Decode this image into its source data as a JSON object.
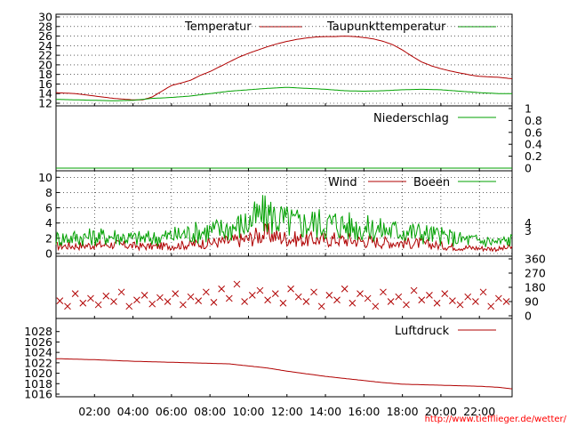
{
  "credit": "http://www.tiefflieger.de/wetter/",
  "time_axis": {
    "labels": [
      "02:00",
      "04:00",
      "06:00",
      "08:00",
      "10:00",
      "12:00",
      "14:00",
      "16:00",
      "18:00",
      "20:00",
      "22:00"
    ],
    "hours": [
      2,
      4,
      6,
      8,
      10,
      12,
      14,
      16,
      18,
      20,
      22
    ],
    "range_hours": [
      0,
      23.7
    ]
  },
  "chart_data": [
    {
      "type": "line",
      "ylim": [
        12,
        30
      ],
      "yticks": [
        12,
        14,
        16,
        18,
        20,
        22,
        24,
        26,
        28,
        30
      ],
      "legend_placement": "top",
      "series": [
        {
          "name": "Temperatur",
          "color": "#b00000",
          "x": [
            0,
            1,
            2,
            3,
            4,
            4.5,
            5,
            5.5,
            6,
            6.5,
            7,
            7.5,
            8,
            8.5,
            9,
            9.5,
            10,
            10.5,
            11,
            11.5,
            12,
            12.5,
            13,
            13.5,
            14,
            14.5,
            15,
            15.5,
            16,
            16.5,
            17,
            17.5,
            18,
            18.5,
            19,
            19.5,
            20,
            20.5,
            21,
            21.5,
            22,
            22.5,
            23,
            23.7
          ],
          "y": [
            14.2,
            14.0,
            13.5,
            13.0,
            12.7,
            12.7,
            13.3,
            14.5,
            15.7,
            16.2,
            16.8,
            17.8,
            18.6,
            19.6,
            20.6,
            21.6,
            22.4,
            23.1,
            23.8,
            24.4,
            24.9,
            25.3,
            25.6,
            25.8,
            25.9,
            25.9,
            26.0,
            25.9,
            25.7,
            25.4,
            24.9,
            24.2,
            23.1,
            21.8,
            20.6,
            19.8,
            19.2,
            18.7,
            18.3,
            17.9,
            17.6,
            17.5,
            17.4,
            17.1
          ]
        },
        {
          "name": "Taupunkttemperatur",
          "color": "#00a000",
          "x": [
            0,
            1,
            2,
            3,
            4,
            5,
            6,
            7,
            8,
            9,
            10,
            11,
            12,
            13,
            14,
            15,
            16,
            17,
            18,
            19,
            20,
            21,
            22,
            23,
            23.7
          ],
          "y": [
            12.8,
            12.7,
            12.6,
            12.5,
            12.6,
            13.0,
            13.2,
            13.5,
            14.0,
            14.5,
            14.8,
            15.1,
            15.3,
            15.1,
            14.9,
            14.6,
            14.5,
            14.6,
            14.8,
            14.9,
            14.8,
            14.5,
            14.2,
            14.0,
            14.0
          ]
        }
      ]
    },
    {
      "type": "line",
      "ylim": [
        0,
        1
      ],
      "yticks_right": [
        0,
        0.2,
        0.4,
        0.6,
        0.8,
        1
      ],
      "legend_placement": "top",
      "series": [
        {
          "name": "Niederschlag",
          "color": "#00a000",
          "x": [
            0,
            23.7
          ],
          "y": [
            0,
            0
          ]
        }
      ]
    },
    {
      "type": "line",
      "ylim": [
        0,
        10.5
      ],
      "yticks": [
        0,
        2,
        4,
        6,
        8,
        10
      ],
      "right_labels": [
        {
          "value": 4,
          "label": "4"
        },
        {
          "value": 3,
          "label": "3"
        }
      ],
      "legend_placement": "top",
      "series": [
        {
          "name": "Wind",
          "color": "#b00000",
          "x": [
            0,
            1,
            2,
            3,
            4,
            5,
            6,
            7,
            8,
            9,
            10,
            10.5,
            11,
            11.5,
            12,
            12.5,
            13,
            13.5,
            14,
            14.5,
            15,
            16,
            17,
            18,
            19,
            20,
            21,
            22,
            23,
            23.7
          ],
          "y": [
            1.0,
            1.0,
            1.1,
            1.2,
            1.0,
            0.9,
            1.0,
            1.2,
            1.4,
            1.6,
            1.9,
            2.4,
            2.6,
            2.2,
            2.0,
            1.9,
            1.8,
            1.9,
            1.8,
            1.9,
            1.8,
            1.6,
            1.5,
            1.4,
            1.3,
            1.0,
            0.8,
            0.7,
            0.6,
            0.8
          ]
        },
        {
          "name": "Boeen",
          "color": "#00a000",
          "x": [
            0,
            1,
            2,
            3,
            4,
            5,
            6,
            7,
            8,
            9,
            10,
            10.5,
            11,
            11.5,
            12,
            12.5,
            13,
            13.5,
            14,
            14.5,
            15,
            16,
            17,
            18,
            19,
            20,
            21,
            22,
            23,
            23.7
          ],
          "y": [
            2.0,
            2.1,
            2.2,
            2.3,
            2.0,
            2.0,
            2.3,
            2.7,
            3.0,
            3.3,
            4.0,
            4.8,
            5.2,
            4.6,
            4.2,
            4.0,
            3.9,
            4.1,
            3.8,
            4.0,
            3.7,
            3.3,
            3.1,
            3.0,
            2.7,
            2.3,
            1.9,
            1.7,
            1.5,
            1.8
          ]
        }
      ]
    },
    {
      "type": "scatter",
      "ylim": [
        0,
        360
      ],
      "yticks_right": [
        0,
        90,
        180,
        270,
        360
      ],
      "series": [
        {
          "name": "",
          "color": "#b00000",
          "x": [
            0.2,
            0.6,
            1.0,
            1.4,
            1.8,
            2.2,
            2.6,
            3.0,
            3.4,
            3.8,
            4.2,
            4.6,
            5.0,
            5.4,
            5.8,
            6.2,
            6.6,
            7.0,
            7.4,
            7.8,
            8.2,
            8.6,
            9.0,
            9.4,
            9.8,
            10.2,
            10.6,
            11.0,
            11.4,
            11.8,
            12.2,
            12.6,
            13.0,
            13.4,
            13.8,
            14.2,
            14.6,
            15.0,
            15.4,
            15.8,
            16.2,
            16.6,
            17.0,
            17.4,
            17.8,
            18.2,
            18.6,
            19.0,
            19.4,
            19.8,
            20.2,
            20.6,
            21.0,
            21.4,
            21.8,
            22.2,
            22.6,
            23.0,
            23.4
          ],
          "y": [
            95,
            60,
            140,
            80,
            110,
            70,
            125,
            90,
            150,
            60,
            100,
            130,
            75,
            115,
            90,
            140,
            70,
            120,
            95,
            150,
            85,
            170,
            110,
            200,
            90,
            130,
            160,
            100,
            140,
            80,
            170,
            120,
            90,
            150,
            60,
            130,
            100,
            170,
            80,
            140,
            110,
            60,
            150,
            90,
            120,
            70,
            160,
            100,
            130,
            80,
            140,
            95,
            70,
            120,
            90,
            150,
            60,
            110,
            90
          ]
        }
      ]
    },
    {
      "type": "line",
      "ylim": [
        1016,
        1030
      ],
      "yticks": [
        1016,
        1018,
        1020,
        1022,
        1024,
        1026,
        1028
      ],
      "legend_placement": "top",
      "series": [
        {
          "name": "Luftdruck",
          "color": "#b00000",
          "x": [
            0,
            2,
            4,
            6,
            8,
            9,
            10,
            11,
            12,
            13,
            14,
            15,
            16,
            17,
            18,
            19,
            20,
            21,
            22,
            23,
            23.7
          ],
          "y": [
            1022.8,
            1022.6,
            1022.3,
            1022.1,
            1021.9,
            1021.8,
            1021.4,
            1021.0,
            1020.4,
            1019.9,
            1019.4,
            1019.0,
            1018.6,
            1018.2,
            1017.9,
            1017.8,
            1017.7,
            1017.6,
            1017.5,
            1017.3,
            1017.0
          ]
        }
      ]
    }
  ]
}
